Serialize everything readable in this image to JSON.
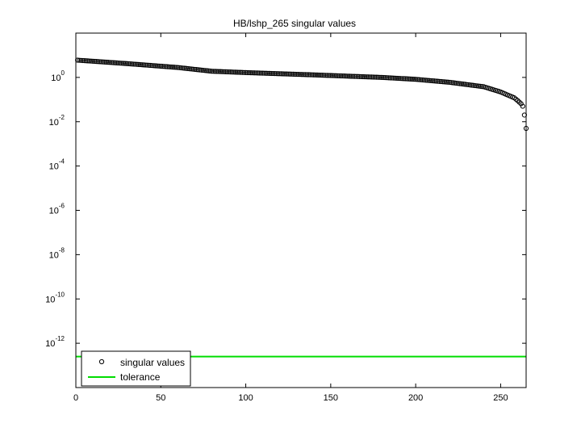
{
  "chart_data": {
    "type": "scatter",
    "title": "HB/lshp_265 singular values",
    "xlabel": "",
    "ylabel": "",
    "xlim": [
      0,
      265
    ],
    "ylim": [
      1e-14,
      100.0
    ],
    "yscale": "log",
    "grid": false,
    "legend_position": "bottom-left",
    "x_ticks": [
      0,
      50,
      100,
      150,
      200,
      250
    ],
    "y_ticks": [
      {
        "value": 1.0,
        "base": "10",
        "exp": "0"
      },
      {
        "value": 0.01,
        "base": "10",
        "exp": "-2"
      },
      {
        "value": 0.0001,
        "base": "10",
        "exp": "-4"
      },
      {
        "value": 1e-06,
        "base": "10",
        "exp": "-6"
      },
      {
        "value": 1e-08,
        "base": "10",
        "exp": "-8"
      },
      {
        "value": 1e-10,
        "base": "10",
        "exp": "-10"
      },
      {
        "value": 1e-12,
        "base": "10",
        "exp": "-12"
      }
    ],
    "series": [
      {
        "name": "singular values",
        "marker": "circle-open",
        "color": "#000000",
        "n": 265,
        "profile_x": [
          1,
          30,
          60,
          80,
          100,
          140,
          180,
          200,
          220,
          240,
          250,
          255,
          258,
          260,
          262,
          263,
          264,
          265
        ],
        "profile_y": [
          6.0,
          4.2,
          2.8,
          1.9,
          1.65,
          1.3,
          1.0,
          0.82,
          0.6,
          0.38,
          0.22,
          0.15,
          0.12,
          0.09,
          0.065,
          0.05,
          0.02,
          0.005
        ]
      },
      {
        "name": "tolerance",
        "marker": "line",
        "color": "#00dd00",
        "value": 2.5e-13
      }
    ]
  }
}
